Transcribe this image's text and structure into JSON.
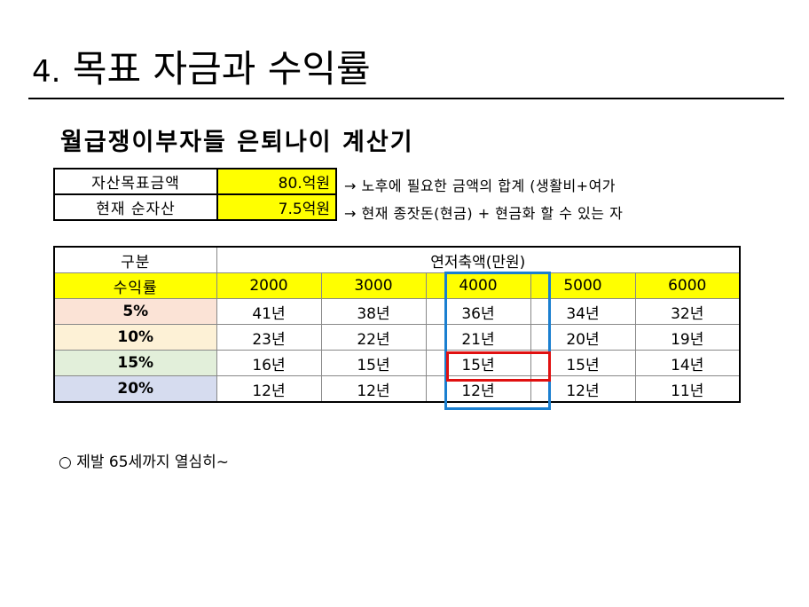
{
  "slide": {
    "title_number": "4.",
    "title_text": "목표 자금과 수익률",
    "heading": "월급쟁이부자들 은퇴나이 계산기"
  },
  "summary": {
    "rows": [
      {
        "label": "자산목표금액",
        "value": "80.억원",
        "note": "→ 노후에 필요한 금액의 합계 (생활비+여가"
      },
      {
        "label": "현재 순자산",
        "value": "7.5억원",
        "note": "→ 현재 종잣돈(현금) + 현금화 할 수 있는 자"
      }
    ]
  },
  "table": {
    "corner_top": "구분",
    "group_header": "연저축액(만원)",
    "corner_bottom": "수익률",
    "columns": [
      "2000",
      "3000",
      "4000",
      "5000",
      "6000"
    ],
    "rows": [
      {
        "rate": "5%",
        "cells": [
          "41년",
          "38년",
          "36년",
          "34년",
          "32년"
        ]
      },
      {
        "rate": "10%",
        "cells": [
          "23년",
          "22년",
          "21년",
          "20년",
          "19년"
        ]
      },
      {
        "rate": "15%",
        "cells": [
          "16년",
          "15년",
          "15년",
          "15년",
          "14년"
        ]
      },
      {
        "rate": "20%",
        "cells": [
          "12년",
          "12년",
          "12년",
          "12년",
          "11년"
        ]
      }
    ],
    "colors": {
      "header_yellow": "#ffff00",
      "rate_5": "#fbe3d6",
      "rate_10": "#fdf1d6",
      "rate_15": "#e2efda",
      "rate_20": "#d6dcef",
      "highlight_column": "#1a7fd0",
      "highlight_cell": "#e01010"
    }
  },
  "bullet": {
    "symbol": "○",
    "text": "제발 65세까지 열심히~"
  }
}
